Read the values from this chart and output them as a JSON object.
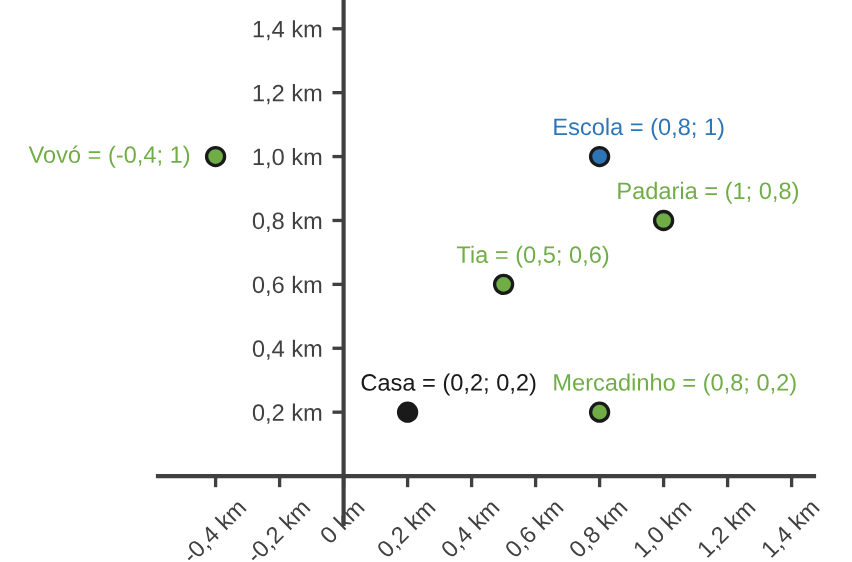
{
  "chart_data": {
    "type": "scatter",
    "xlim": [
      -0.58,
      1.47
    ],
    "ylim": [
      -0.15,
      1.49
    ],
    "xticks": [
      {
        "value": -0.4,
        "label": "-0,4 km"
      },
      {
        "value": -0.2,
        "label": "-0,2 km"
      },
      {
        "value": 0,
        "label": "0 km"
      },
      {
        "value": 0.2,
        "label": "0,2 km"
      },
      {
        "value": 0.4,
        "label": "0,4 km"
      },
      {
        "value": 0.6,
        "label": "0,6 km"
      },
      {
        "value": 0.8,
        "label": "0,8 km"
      },
      {
        "value": 1.0,
        "label": "1,0 km"
      },
      {
        "value": 1.2,
        "label": "1,2 km"
      },
      {
        "value": 1.4,
        "label": "1,4 km"
      }
    ],
    "yticks": [
      {
        "value": 0.2,
        "label": "0,2 km"
      },
      {
        "value": 0.4,
        "label": "0,4 km"
      },
      {
        "value": 0.6,
        "label": "0,6 km"
      },
      {
        "value": 0.8,
        "label": "0,8 km"
      },
      {
        "value": 1.0,
        "label": "1,0 km"
      },
      {
        "value": 1.2,
        "label": "1,2 km"
      },
      {
        "value": 1.4,
        "label": "1,4 km"
      }
    ],
    "grid": false,
    "marker": "circle",
    "legend": false,
    "series": [
      {
        "name": "Vovó = (-0,4; 1)",
        "color": "#70ad47",
        "x": [
          -0.4
        ],
        "values": [
          1.0
        ]
      },
      {
        "name": "Escola = (0,8; 1)",
        "color": "#2e75b6",
        "x": [
          0.8
        ],
        "values": [
          1.0
        ]
      },
      {
        "name": "Padaria = (1; 0,8)",
        "color": "#70ad47",
        "x": [
          1.0
        ],
        "values": [
          0.8
        ]
      },
      {
        "name": "Tia = (0,5; 0,6)",
        "color": "#70ad47",
        "x": [
          0.5
        ],
        "values": [
          0.6
        ]
      },
      {
        "name": "Casa = (0,2; 0,2)",
        "color": "#1a1a1a",
        "x": [
          0.2
        ],
        "values": [
          0.2
        ]
      },
      {
        "name": "Mercadinho = (0,8; 0,2)",
        "color": "#70ad47",
        "x": [
          0.8
        ],
        "values": [
          0.2
        ]
      }
    ]
  }
}
